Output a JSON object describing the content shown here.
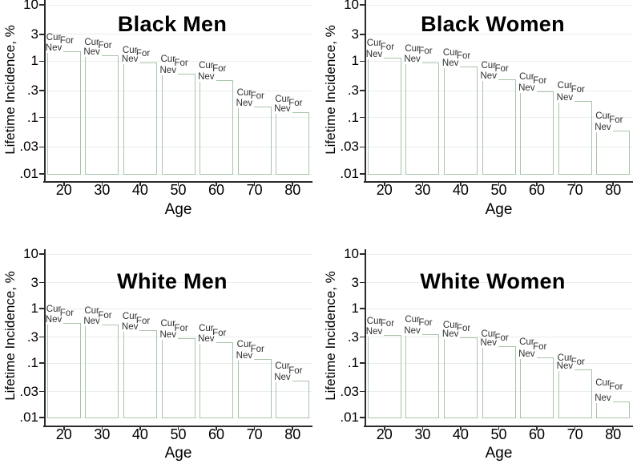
{
  "figure": {
    "y_axis_title": "Lifetime Incidence, %",
    "x_axis_title": "Age",
    "y_tick_labels": [
      "10",
      "3",
      "1",
      ".3",
      ".1",
      ".03",
      ".01"
    ],
    "y_tick_values": [
      10,
      3,
      1,
      0.3,
      0.1,
      0.03,
      0.01
    ],
    "x_tick_labels": [
      "20",
      "30",
      "40",
      "50",
      "60",
      "70",
      "80"
    ],
    "x_tick_values": [
      20,
      30,
      40,
      50,
      60,
      70,
      80
    ],
    "series_labels": {
      "current": "Cur",
      "former": "For",
      "never": "Nev"
    },
    "colors": {
      "bar_outline": "#a9c4a9",
      "gridline": "#e8efec",
      "axis": "#2b2b2b",
      "tick_text": "#000000",
      "bar_label_text": "#303030",
      "background": "#ffffff"
    }
  },
  "chart_data": [
    {
      "type": "bar",
      "title": "Black Men",
      "xlabel": "Age",
      "ylabel": "Lifetime Incidence, %",
      "yscale": "log",
      "ylim": [
        0.01,
        10
      ],
      "categories": [
        20,
        30,
        40,
        50,
        60,
        70,
        80
      ],
      "series": [
        {
          "name": "Cur",
          "values": [
            2.5,
            2.1,
            1.5,
            1.05,
            0.8,
            0.26,
            0.2
          ]
        },
        {
          "name": "For",
          "values": [
            2.2,
            1.85,
            1.33,
            0.9,
            0.7,
            0.23,
            0.175
          ]
        },
        {
          "name": "Nev",
          "values": [
            1.5,
            1.27,
            0.95,
            0.6,
            0.46,
            0.155,
            0.125
          ]
        }
      ]
    },
    {
      "type": "bar",
      "title": "Black Women",
      "xlabel": "Age",
      "ylabel": "Lifetime Incidence, %",
      "yscale": "log",
      "ylim": [
        0.01,
        10
      ],
      "categories": [
        20,
        30,
        40,
        50,
        60,
        70,
        80
      ],
      "series": [
        {
          "name": "Cur",
          "values": [
            2.0,
            1.6,
            1.37,
            0.81,
            0.51,
            0.35,
            0.102
          ]
        },
        {
          "name": "For",
          "values": [
            1.7,
            1.45,
            1.2,
            0.7,
            0.435,
            0.3,
            0.088
          ]
        },
        {
          "name": "Nev",
          "values": [
            1.16,
            0.96,
            0.81,
            0.475,
            0.29,
            0.196,
            0.058
          ]
        }
      ]
    },
    {
      "type": "bar",
      "title": "White Men",
      "xlabel": "Age",
      "ylabel": "Lifetime Incidence, %",
      "yscale": "log",
      "ylim": [
        0.01,
        10
      ],
      "categories": [
        20,
        30,
        40,
        50,
        60,
        70,
        80
      ],
      "series": [
        {
          "name": "Cur",
          "values": [
            0.95,
            0.88,
            0.68,
            0.5,
            0.42,
            0.21,
            0.085
          ]
        },
        {
          "name": "For",
          "values": [
            0.78,
            0.72,
            0.56,
            0.41,
            0.34,
            0.17,
            0.07
          ]
        },
        {
          "name": "Nev",
          "values": [
            0.55,
            0.5,
            0.4,
            0.29,
            0.24,
            0.12,
            0.048
          ]
        }
      ]
    },
    {
      "type": "bar",
      "title": "White Women",
      "xlabel": "Age",
      "ylabel": "Lifetime Incidence, %",
      "yscale": "log",
      "ylim": [
        0.01,
        10
      ],
      "categories": [
        20,
        30,
        40,
        50,
        60,
        70,
        80
      ],
      "series": [
        {
          "name": "Cur",
          "values": [
            0.57,
            0.6,
            0.48,
            0.33,
            0.23,
            0.12,
            0.041
          ]
        },
        {
          "name": "For",
          "values": [
            0.5,
            0.52,
            0.42,
            0.28,
            0.19,
            0.1,
            0.035
          ]
        },
        {
          "name": "Nev",
          "values": [
            0.33,
            0.34,
            0.295,
            0.205,
            0.128,
            0.075,
            0.0195
          ]
        }
      ]
    }
  ]
}
